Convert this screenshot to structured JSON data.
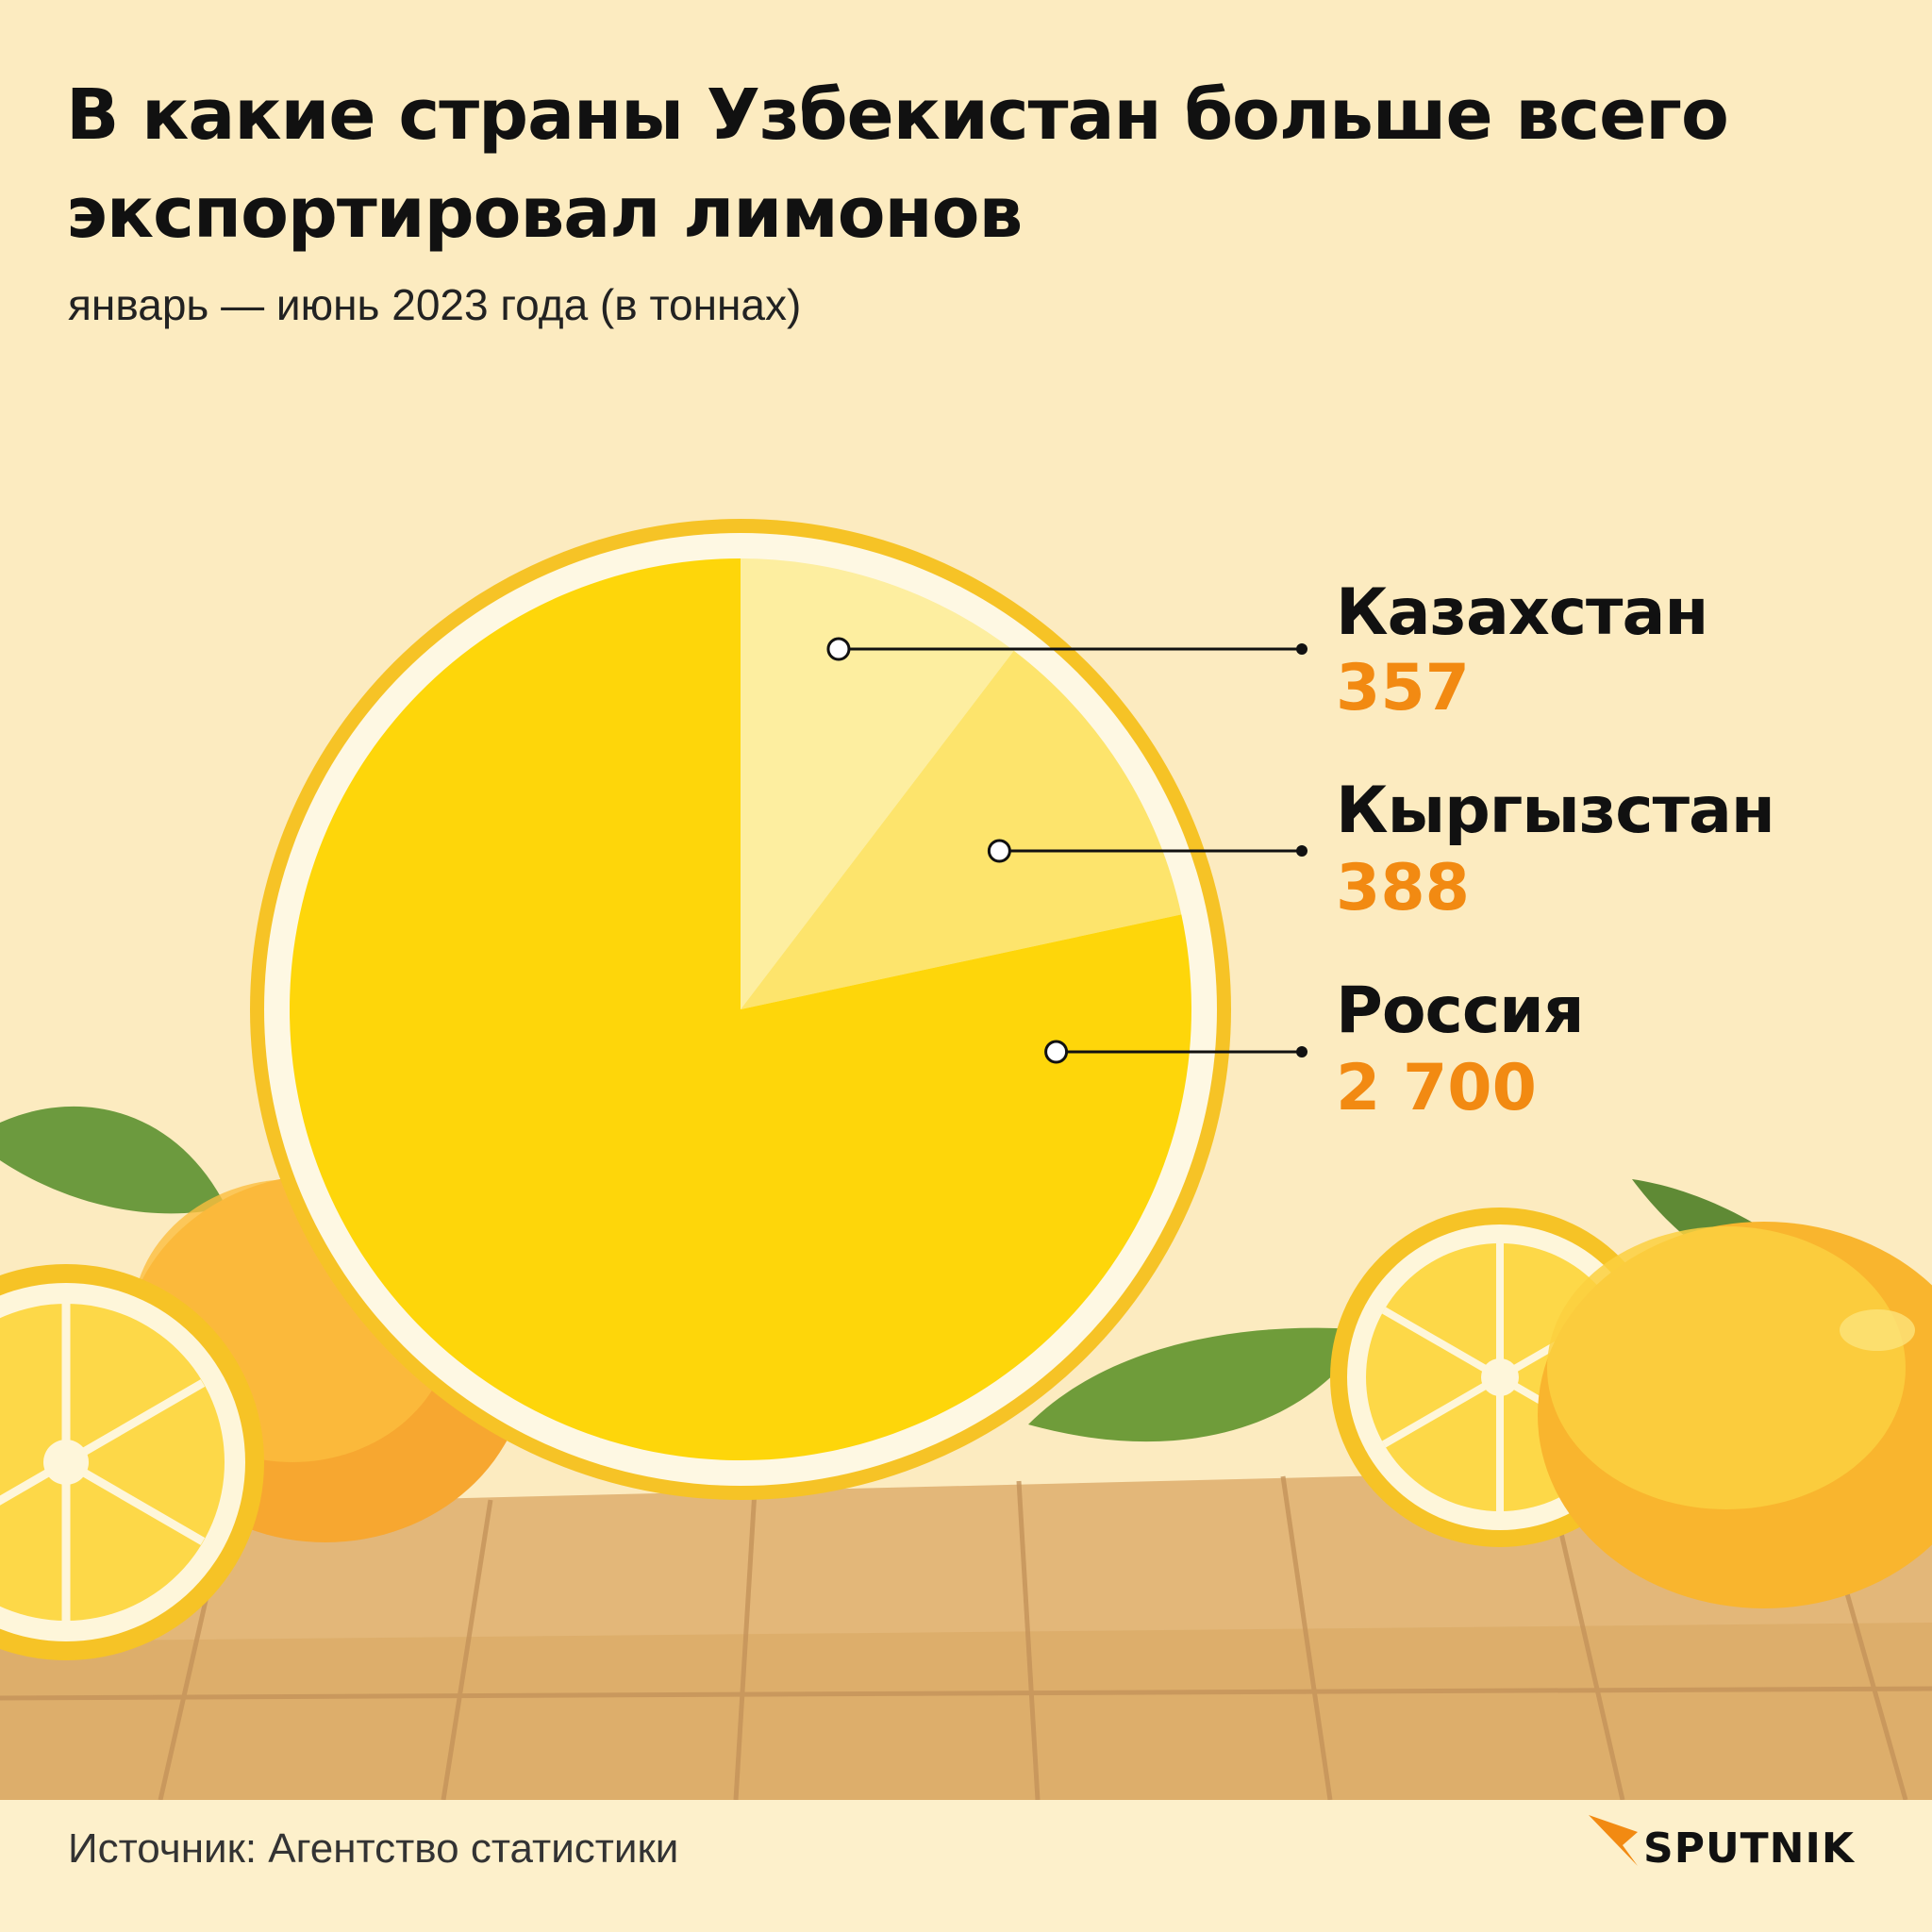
{
  "title": "В какие страны Узбекистан больше всего экспортировал лимонов",
  "subtitle": "январь — июнь 2023 года (в тоннах)",
  "chart_data": {
    "type": "pie",
    "title": "В какие страны Узбекистан больше всего экспортировал лимонов",
    "subtitle": "январь — июнь 2023 года (в тоннах)",
    "categories": [
      "Казахстан",
      "Кыргызстан",
      "Россия"
    ],
    "values": [
      357,
      388,
      2700
    ],
    "value_labels": [
      "357",
      "388",
      "2 700"
    ],
    "colors": [
      "#fdeea0",
      "#fde46c",
      "#fed60a"
    ],
    "legend_placement": "right"
  },
  "footer": {
    "source": "Источник: Агентство статистики",
    "brand": "SPUTNIK"
  }
}
